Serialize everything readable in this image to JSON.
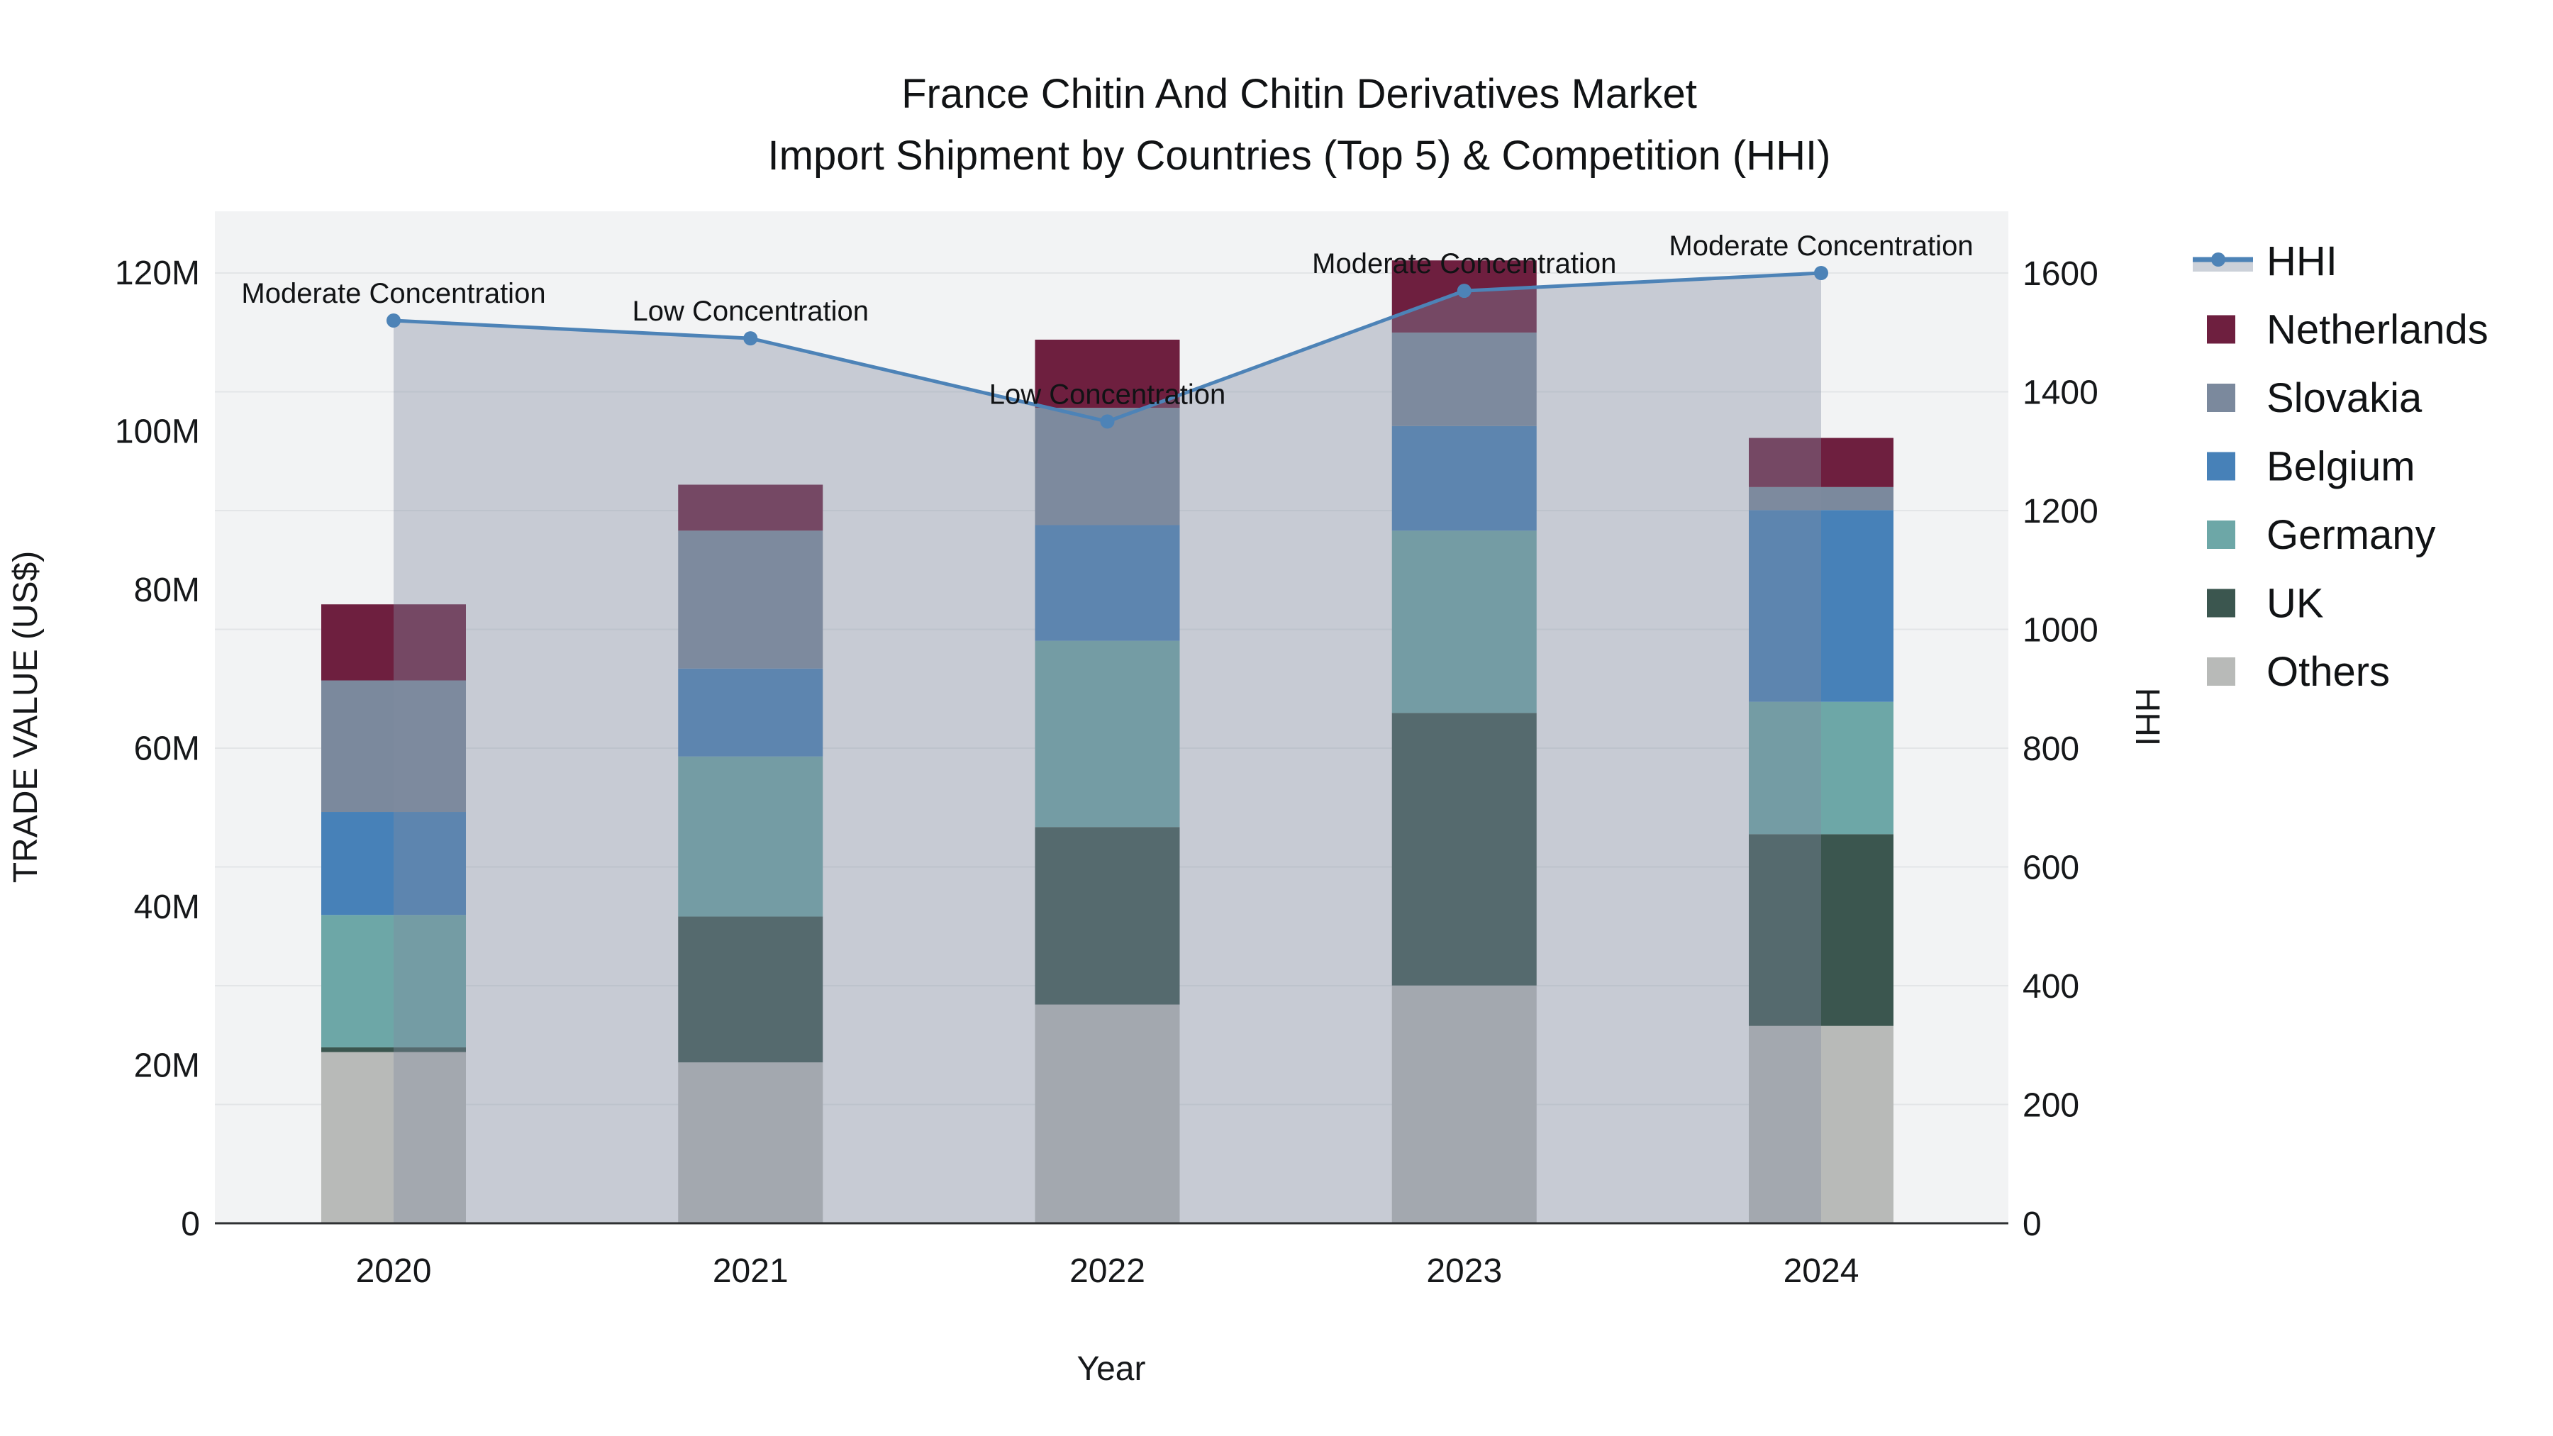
{
  "title": {
    "line1": "France Chitin And Chitin Derivatives Market",
    "line2": "Import Shipment by Countries (Top 5) & Competition (HHI)"
  },
  "colors": {
    "plot_background": "#f2f3f4",
    "gridline": "#e3e5e7",
    "x_axis_line": "#2f3133",
    "hhi_line": "#4d83b7",
    "hhi_area_fill": "rgba(128,139,160,0.38)",
    "netherlands": "#6e1f3f",
    "slovakia": "#7b899d",
    "belgium": "#4781b8",
    "germany": "#6da7a7",
    "uk": "#3b564f",
    "others": "#b8bab8"
  },
  "chart_data": {
    "type": "bar",
    "subtype": "stacked-bars-with-line-overlay",
    "categories": [
      "2020",
      "2021",
      "2022",
      "2023",
      "2024"
    ],
    "series": [
      {
        "name": "Others",
        "color_key": "others",
        "values": [
          21.6,
          20.3,
          27.6,
          30.0,
          24.9
        ]
      },
      {
        "name": "UK",
        "color_key": "uk",
        "values": [
          0.6,
          18.4,
          22.4,
          34.4,
          24.2
        ]
      },
      {
        "name": "Germany",
        "color_key": "germany",
        "values": [
          16.7,
          20.2,
          23.5,
          23.0,
          16.7
        ]
      },
      {
        "name": "Belgium",
        "color_key": "belgium",
        "values": [
          13.0,
          11.1,
          14.6,
          13.2,
          24.2
        ]
      },
      {
        "name": "Slovakia",
        "color_key": "slovakia",
        "values": [
          16.6,
          17.4,
          14.8,
          11.8,
          2.9
        ]
      },
      {
        "name": "Netherlands",
        "color_key": "netherlands",
        "values": [
          9.6,
          5.8,
          8.6,
          9.1,
          6.2
        ]
      }
    ],
    "bar_totals": [
      78.1,
      93.2,
      111.5,
      121.5,
      99.1
    ],
    "line_series": {
      "name": "HHI",
      "values": [
        1520,
        1490,
        1350,
        1570,
        1600
      ],
      "area_to_zero": true
    },
    "annotations": [
      "Moderate Concentration",
      "Low Concentration",
      "Low Concentration",
      "Moderate Concentration",
      "Moderate Concentration"
    ],
    "left_axis": {
      "label": "TRADE VALUE (US$)",
      "tick_labels": [
        "0",
        "20M",
        "40M",
        "60M",
        "80M",
        "100M",
        "120M"
      ],
      "tick_values": [
        0,
        20,
        40,
        60,
        80,
        100,
        120
      ],
      "range_millions": [
        0,
        127.7
      ]
    },
    "right_axis": {
      "label": "HHI",
      "tick_values": [
        0,
        200,
        400,
        600,
        800,
        1000,
        1200,
        1400,
        1600
      ],
      "range": [
        0,
        1704
      ]
    },
    "x_axis": {
      "label": "Year"
    },
    "legend": {
      "position": "right",
      "entries": [
        "HHI",
        "Netherlands",
        "Slovakia",
        "Belgium",
        "Germany",
        "UK",
        "Others"
      ]
    }
  }
}
